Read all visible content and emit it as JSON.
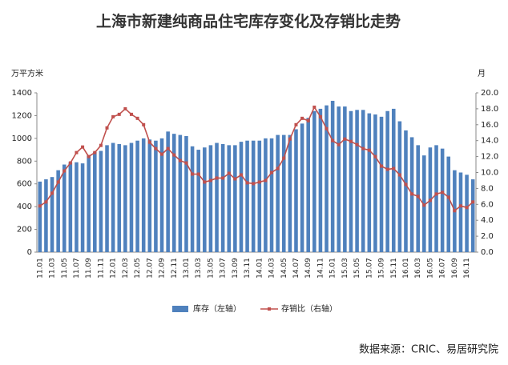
{
  "chart_data": {
    "type": "bar-line",
    "title": "上海市新建纯商品住宅库存变化及存销比走势",
    "y_label": "万平方米",
    "y2_label": "月",
    "source": "数据来源：CRIC、易居研究院",
    "categories": [
      "11.01",
      null,
      "11.03",
      null,
      "11.05",
      null,
      "11.07",
      null,
      "11.09",
      null,
      "11.11",
      null,
      "12.01",
      null,
      "12.03",
      null,
      "12.05",
      null,
      "12.07",
      null,
      "12.09",
      null,
      "12.11",
      null,
      "13.01",
      null,
      "13.03",
      null,
      "13.05",
      null,
      "13.07",
      null,
      "13.09",
      null,
      "13.11",
      null,
      "14.01",
      null,
      "14.03",
      null,
      "14.05",
      null,
      "14.07",
      null,
      "14.09",
      null,
      "14.11",
      null,
      "15.01",
      null,
      "15.03",
      null,
      "15.05",
      null,
      "15.07",
      null,
      "15.09",
      null,
      "15.11",
      null,
      "16.01",
      null,
      "16.03",
      null,
      "16.05",
      null,
      "16.07",
      null,
      "16.09",
      null,
      "16.11",
      null
    ],
    "series": [
      {
        "name": "库存（左轴）",
        "color": "#4f81bd",
        "type": "bar",
        "values": [
          620,
          640,
          660,
          720,
          770,
          790,
          790,
          780,
          850,
          880,
          890,
          940,
          960,
          950,
          940,
          960,
          980,
          1000,
          990,
          980,
          1000,
          1060,
          1040,
          1030,
          1020,
          930,
          900,
          920,
          940,
          960,
          950,
          940,
          940,
          970,
          980,
          980,
          980,
          1000,
          1000,
          1030,
          1030,
          1030,
          1080,
          1130,
          1180,
          1240,
          1260,
          1290,
          1330,
          1280,
          1280,
          1240,
          1250,
          1250,
          1220,
          1210,
          1190,
          1240,
          1260,
          1150,
          1070,
          1010,
          940,
          850,
          920,
          940,
          910,
          840,
          720,
          700,
          680,
          640
        ]
      },
      {
        "name": "存销比（右轴）",
        "color": "#c0504d",
        "type": "line",
        "axis": "y2",
        "values": [
          5.8,
          6.3,
          7.4,
          8.8,
          10.2,
          11.2,
          12.5,
          13.2,
          12.0,
          12.5,
          13.4,
          15.6,
          17.0,
          17.3,
          18.0,
          17.3,
          16.8,
          16.0,
          13.8,
          13.0,
          12.3,
          13.0,
          12.2,
          11.5,
          11.2,
          9.8,
          9.8,
          8.8,
          9.0,
          9.3,
          9.3,
          9.9,
          9.2,
          9.7,
          8.7,
          8.6,
          8.8,
          9.0,
          10.0,
          10.5,
          11.8,
          14.2,
          16.0,
          16.8,
          16.5,
          18.2,
          17.0,
          15.5,
          14.0,
          13.5,
          14.2,
          13.9,
          13.5,
          13.0,
          12.8,
          12.0,
          10.8,
          10.4,
          10.5,
          9.7,
          8.5,
          7.3,
          7.0,
          5.9,
          6.5,
          7.3,
          7.5,
          6.9,
          5.2,
          5.8,
          5.6,
          6.3
        ]
      }
    ],
    "ylim": [
      0,
      1400
    ],
    "yticks": [
      0,
      200,
      400,
      600,
      800,
      1000,
      1200,
      1400
    ],
    "y2lim": [
      0,
      20
    ],
    "y2ticks": [
      {
        "value": 0,
        "label": "0.0"
      },
      {
        "value": 2,
        "label": "2.0"
      },
      {
        "value": 4,
        "label": "4.0"
      },
      {
        "value": 6,
        "label": "6.0"
      },
      {
        "value": 8,
        "label": "8.0"
      },
      {
        "value": 10,
        "label": "10.0"
      },
      {
        "value": 12,
        "label": "12.0"
      },
      {
        "value": 14,
        "label": "14.0"
      },
      {
        "value": 16,
        "label": "16.0"
      },
      {
        "value": 18,
        "label": "18.0"
      },
      {
        "value": 20,
        "label": "20.0"
      }
    ],
    "grid": false,
    "legend": "bottom"
  }
}
